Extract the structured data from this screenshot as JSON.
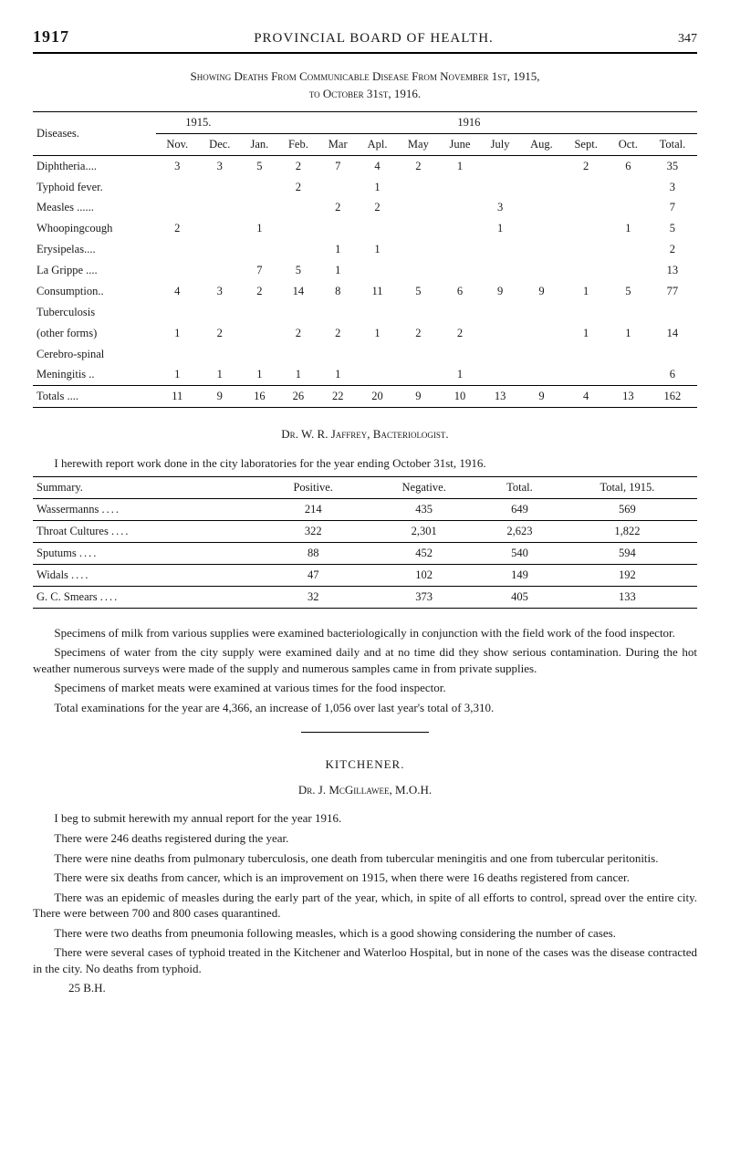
{
  "header": {
    "year": "1917",
    "title": "PROVINCIAL BOARD OF HEALTH.",
    "page": "347"
  },
  "table1": {
    "title": "Showing Deaths From Communicable Disease From November 1st, 1915,",
    "subtitle": "to October 31st, 1916.",
    "group_1915": "1915.",
    "group_1916": "1916",
    "cols": [
      "Diseases.",
      "Nov.",
      "Dec.",
      "Jan.",
      "Feb.",
      "Mar",
      "Apl.",
      "May",
      "June",
      "July",
      "Aug.",
      "Sept.",
      "Oct.",
      "Total."
    ],
    "rows": [
      [
        "Diphtheria....",
        "3",
        "3",
        "5",
        "2",
        "7",
        "4",
        "2",
        "1",
        "",
        "",
        "2",
        "6",
        "35"
      ],
      [
        "Typhoid fever.",
        "",
        "",
        "",
        "2",
        "",
        "1",
        "",
        "",
        "",
        "",
        "",
        "",
        "3"
      ],
      [
        "Measles ......",
        "",
        "",
        "",
        "",
        "2",
        "2",
        "",
        "",
        "3",
        "",
        "",
        "",
        "7"
      ],
      [
        "Whoopingcough",
        "2",
        "",
        "1",
        "",
        "",
        "",
        "",
        "",
        "1",
        "",
        "",
        "1",
        "5"
      ],
      [
        "Erysipelas....",
        "",
        "",
        "",
        "",
        "1",
        "1",
        "",
        "",
        "",
        "",
        "",
        "",
        "2"
      ],
      [
        "La Grippe ....",
        "",
        "",
        "7",
        "5",
        "1",
        "",
        "",
        "",
        "",
        "",
        "",
        "",
        "13"
      ],
      [
        "Consumption..",
        "4",
        "3",
        "2",
        "14",
        "8",
        "11",
        "5",
        "6",
        "9",
        "9",
        "1",
        "5",
        "77"
      ],
      [
        "Tuberculosis",
        "",
        "",
        "",
        "",
        "",
        "",
        "",
        "",
        "",
        "",
        "",
        "",
        ""
      ],
      [
        "(other forms)",
        "1",
        "2",
        "",
        "2",
        "2",
        "1",
        "2",
        "2",
        "",
        "",
        "1",
        "1",
        "14"
      ],
      [
        "Cerebro-spinal",
        "",
        "",
        "",
        "",
        "",
        "",
        "",
        "",
        "",
        "",
        "",
        "",
        ""
      ],
      [
        "Meningitis ..",
        "1",
        "1",
        "1",
        "1",
        "1",
        "",
        "",
        "1",
        "",
        "",
        "",
        "",
        "6"
      ]
    ],
    "totals": [
      "Totals ....",
      "11",
      "9",
      "16",
      "26",
      "22",
      "20",
      "9",
      "10",
      "13",
      "9",
      "4",
      "13",
      "162"
    ]
  },
  "byline": "Dr. W. R. Jaffrey, Bacteriologist.",
  "intro2": "I herewith report work done in the city laboratories for the year ending October 31st, 1916.",
  "table2": {
    "cols": [
      "Summary.",
      "Positive.",
      "Negative.",
      "Total.",
      "Total, 1915."
    ],
    "rows": [
      [
        "Wassermanns",
        "214",
        "435",
        "649",
        "569"
      ],
      [
        "Throat Cultures",
        "322",
        "2,301",
        "2,623",
        "1,822"
      ],
      [
        "Sputums",
        "88",
        "452",
        "540",
        "594"
      ],
      [
        "Widals",
        "47",
        "102",
        "149",
        "192"
      ],
      [
        "G. C. Smears",
        "32",
        "373",
        "405",
        "133"
      ]
    ]
  },
  "para": {
    "p1": "Specimens of milk from various supplies were examined bacteriologically in conjunction with the field work of the food inspector.",
    "p2": "Specimens of water from the city supply were examined daily and at no time did they show serious contamination. During the hot weather numerous surveys were made of the supply and numerous samples came in from private supplies.",
    "p3": "Specimens of market meats were examined at various times for the food inspector.",
    "p4": "Total examinations for the year are 4,366, an increase of 1,056 over last year's total of 3,310."
  },
  "kitchener": {
    "heading": "KITCHENER.",
    "doctor": "Dr. J. McGillawee, M.O.H.",
    "p1": "I beg to submit herewith my annual report for the year 1916.",
    "p2": "There were 246 deaths registered during the year.",
    "p3": "There were nine deaths from pulmonary tuberculosis, one death from tubercular meningitis and one from tubercular peritonitis.",
    "p4": "There were six deaths from cancer, which is an improvement on 1915, when there were 16 deaths registered from cancer.",
    "p5": "There was an epidemic of measles during the early part of the year, which, in spite of all efforts to control, spread over the entire city. There were between 700 and 800 cases quarantined.",
    "p6": "There were two deaths from pneumonia following measles, which is a good showing considering the number of cases.",
    "p7": "There were several cases of typhoid treated in the Kitchener and Waterloo Hospital, but in none of the cases was the disease contracted in the city. No deaths from typhoid.",
    "sig": "25 B.H."
  }
}
